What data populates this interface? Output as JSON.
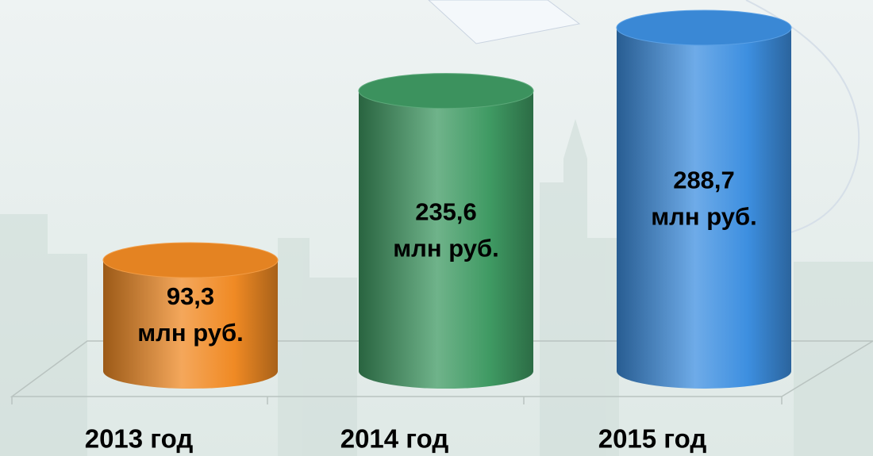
{
  "chart_data": {
    "type": "cylinder-bar",
    "categories": [
      "2013 год",
      "2014 год",
      "2015 год"
    ],
    "series": [
      {
        "values": [
          93.3,
          235.6,
          288.7
        ],
        "value_labels": [
          [
            "93,3",
            "млн руб."
          ],
          [
            "235,6",
            "млн руб."
          ],
          [
            "288,7",
            "млн руб."
          ]
        ],
        "colors": [
          "#f08a24",
          "#3f9a63",
          "#3d8fe0"
        ]
      }
    ]
  }
}
